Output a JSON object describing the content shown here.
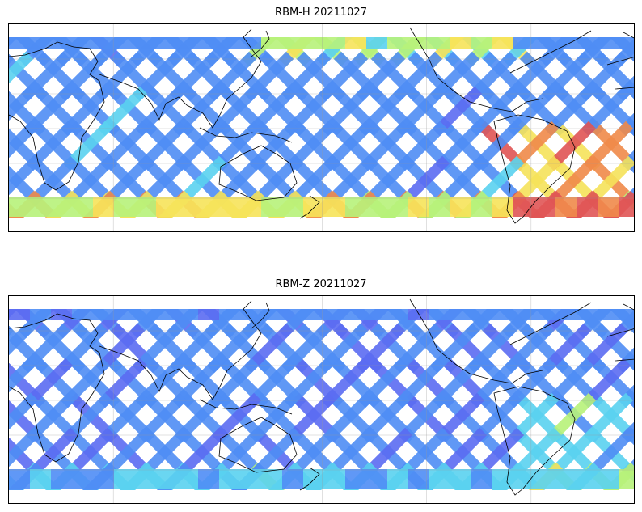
{
  "figure": {
    "panels": [
      {
        "title": "RBM-H 20211027",
        "colormap": "jet",
        "swath_colors": [
          "#5b6cf2",
          "#4f8df5",
          "#5ad2f0",
          "#b7f27a",
          "#f6e35a",
          "#f08a4a",
          "#e05555"
        ],
        "high_value_regions": [
          "far southern latitudes",
          "South Atlantic east of South America",
          "North Pacific band"
        ]
      },
      {
        "title": "RBM-Z 20211027",
        "colormap": "jet",
        "swath_colors": [
          "#5b6cf2",
          "#4f8df5",
          "#5ad2f0",
          "#b7f27a",
          "#f6e35a"
        ],
        "high_value_regions": [
          "southern latitudes band",
          "South Atlantic east of South America"
        ]
      }
    ],
    "projection": "equirectangular (Pacific-centered)",
    "features": [
      "coastlines",
      "lat/lon gridlines"
    ]
  }
}
